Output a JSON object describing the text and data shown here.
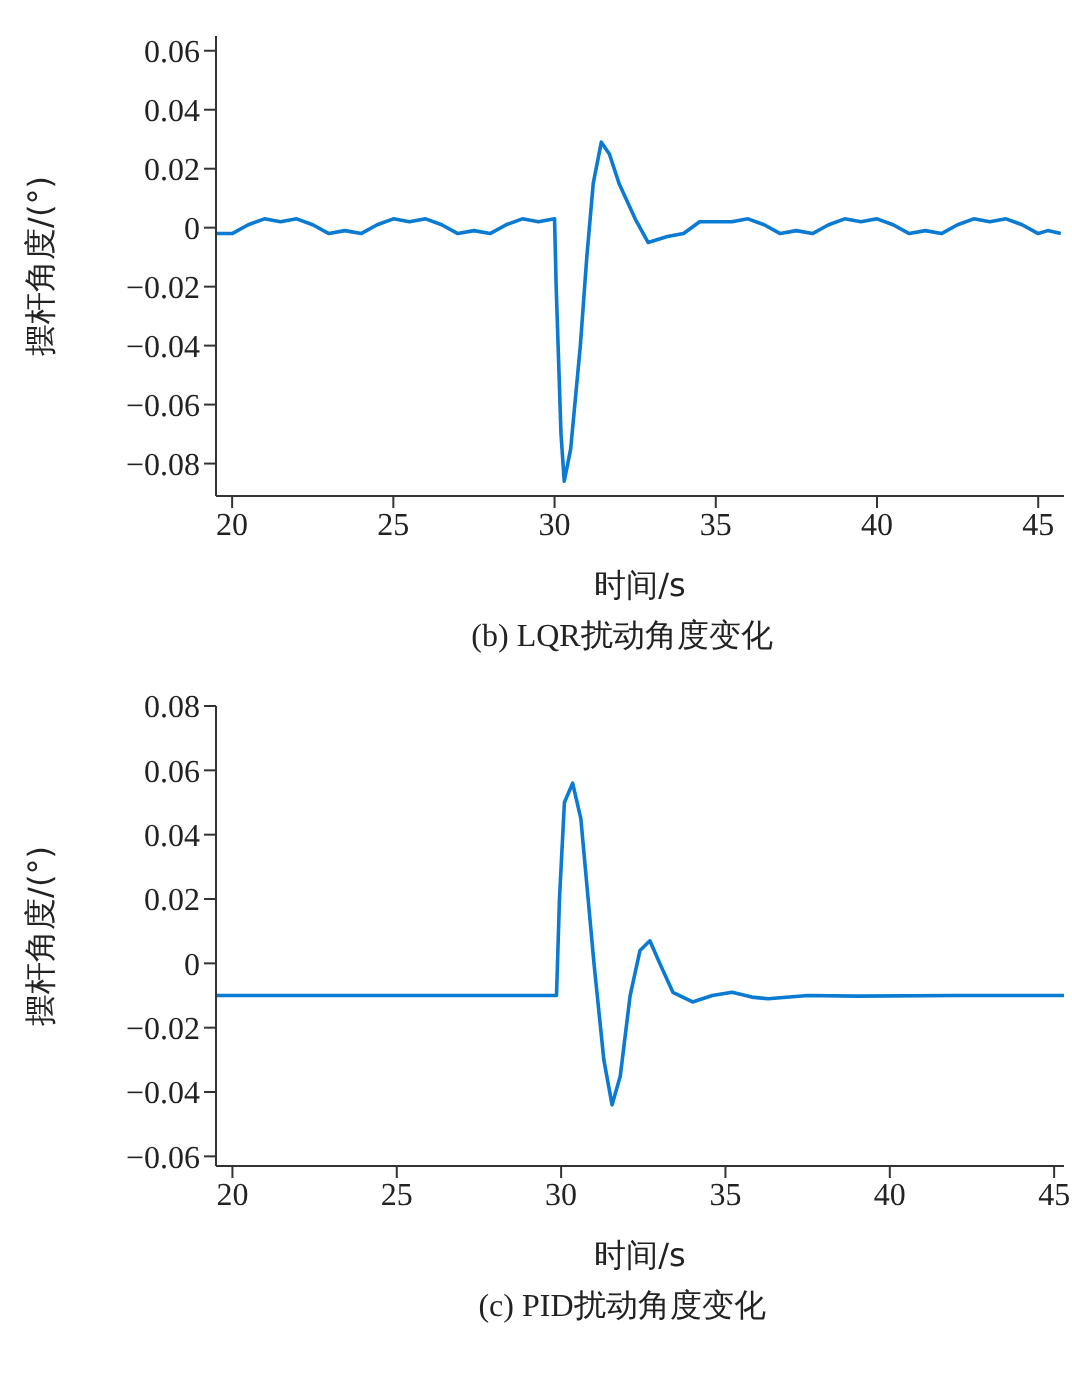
{
  "chart_data": [
    {
      "type": "line",
      "title": "(b) LQR扰动角度变化",
      "xlabel": "时间/s",
      "ylabel": "摆杆角度/(°)",
      "xlim": [
        19.5,
        45.8
      ],
      "xticks": [
        20,
        25,
        30,
        35,
        40,
        45
      ],
      "ylim": [
        -0.091,
        0.065
      ],
      "yticks": [
        -0.08,
        -0.06,
        -0.04,
        -0.02,
        0,
        0.02,
        0.04,
        0.06
      ],
      "grid": false,
      "legend": false,
      "marker": "none",
      "line_style": "solid",
      "series": [
        {
          "color": "#0a7ad2",
          "x": [
            19.5,
            20,
            20.5,
            21,
            21.5,
            22,
            22.5,
            23,
            23.5,
            24,
            24.5,
            25,
            25.5,
            26,
            26.5,
            27,
            27.5,
            28,
            28.5,
            29,
            29.5,
            30,
            30.05,
            30.2,
            30.3,
            30.5,
            30.8,
            31,
            31.2,
            31.45,
            31.7,
            32,
            32.5,
            32.9,
            33.2,
            33.5,
            34,
            34.5,
            35,
            35.5,
            36,
            36.5,
            37,
            37.5,
            38,
            38.5,
            39,
            39.5,
            40,
            40.5,
            41,
            41.5,
            42,
            42.5,
            43,
            43.5,
            44,
            44.5,
            45,
            45.3,
            45.7
          ],
          "values": [
            -0.002,
            -0.002,
            0.001,
            0.003,
            0.002,
            0.003,
            0.001,
            -0.002,
            -0.001,
            -0.002,
            0.001,
            0.003,
            0.002,
            0.003,
            0.001,
            -0.002,
            -0.001,
            -0.002,
            0.001,
            0.003,
            0.002,
            0.003,
            -0.02,
            -0.07,
            -0.086,
            -0.075,
            -0.04,
            -0.01,
            0.015,
            0.029,
            0.025,
            0.015,
            0.003,
            -0.005,
            -0.004,
            -0.003,
            -0.002,
            0.002,
            0.002,
            0.002,
            0.003,
            0.001,
            -0.002,
            -0.001,
            -0.002,
            0.001,
            0.003,
            0.002,
            0.003,
            0.001,
            -0.002,
            -0.001,
            -0.002,
            0.001,
            0.003,
            0.002,
            0.003,
            0.001,
            -0.002,
            -0.001,
            -0.002
          ]
        }
      ]
    },
    {
      "type": "line",
      "title": "(c) PID扰动角度变化",
      "xlabel": "时间/s",
      "ylabel": "摆杆角度/(°)",
      "xlim": [
        19.5,
        45.3
      ],
      "xticks": [
        20,
        25,
        30,
        35,
        40,
        45
      ],
      "ylim": [
        -0.063,
        0.08
      ],
      "yticks": [
        -0.06,
        -0.04,
        -0.02,
        0,
        0.02,
        0.04,
        0.06,
        0.08
      ],
      "grid": false,
      "legend": false,
      "marker": "none",
      "line_style": "solid",
      "series": [
        {
          "color": "#0a7ad2",
          "x": [
            19.5,
            25,
            29.86,
            29.95,
            30.1,
            30.35,
            30.6,
            31,
            31.3,
            31.55,
            31.8,
            32.1,
            32.4,
            32.7,
            33,
            33.4,
            34,
            34.6,
            35.2,
            35.8,
            36.3,
            37.5,
            39,
            42,
            45.3
          ],
          "values": [
            -0.01,
            -0.01,
            -0.01,
            0.02,
            0.05,
            0.056,
            0.045,
            0.0,
            -0.03,
            -0.044,
            -0.035,
            -0.01,
            0.004,
            0.007,
            0.0,
            -0.009,
            -0.012,
            -0.01,
            -0.009,
            -0.0105,
            -0.011,
            -0.01,
            -0.0102,
            -0.01,
            -0.01
          ]
        }
      ]
    }
  ]
}
